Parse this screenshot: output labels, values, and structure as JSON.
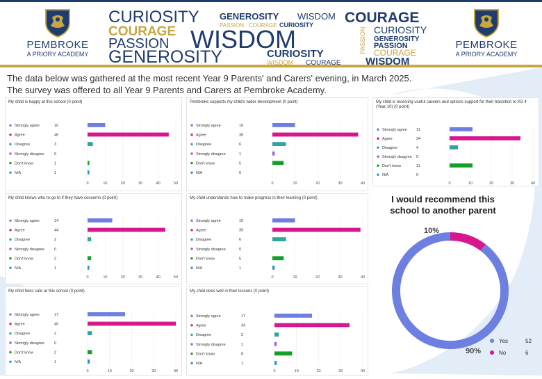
{
  "header": {
    "school_name": "PEMBROKE",
    "school_subtitle": "A PRIORY ACADEMY",
    "words": [
      {
        "text": "CURIOSITY",
        "color": "#1f3c6e"
      },
      {
        "text": "GENEROSITY",
        "color": "#1f3c6e"
      },
      {
        "text": "WISDOM",
        "color": "#1f3c6e"
      },
      {
        "text": "COURAGE",
        "color": "#1f3c6e"
      },
      {
        "text": "COURAGE",
        "color": "#c9a640"
      },
      {
        "text": "PASSION",
        "color": "#c9a640"
      },
      {
        "text": "COURAGE",
        "color": "#c9a640"
      },
      {
        "text": "CURIOSITY",
        "color": "#1f3c6e"
      },
      {
        "text": "PASSION",
        "color": "#1f3c6e"
      },
      {
        "text": "WISDOM",
        "color": "#1f3c6e"
      },
      {
        "text": "CURIOSITY",
        "color": "#1f3c6e"
      },
      {
        "text": "GENEROSITY",
        "color": "#1f3c6e"
      },
      {
        "text": "PASSION",
        "color": "#1f3c6e"
      },
      {
        "text": "GENEROSITY",
        "color": "#1f3c6e"
      },
      {
        "text": "CURIOSITY",
        "color": "#1f3c6e"
      },
      {
        "text": "WISDOM",
        "color": "#c9a640"
      },
      {
        "text": "COURAGE",
        "color": "#1f3c6e"
      },
      {
        "text": "PASSION",
        "color": "#c9a640"
      },
      {
        "text": "COURAGE",
        "color": "#c9a640"
      },
      {
        "text": "WISDOM",
        "color": "#1f3c6e"
      }
    ]
  },
  "intro": {
    "line1": "The data below was gathered at the most recent Year 9 Parents' and Carers' evening, in March 2025.",
    "line2": "The survey was offered to all Year 9 Parents and Carers at Pembroke Academy."
  },
  "colors": {
    "categories": [
      "#6d7fe0",
      "#d6178d",
      "#2ea5a0",
      "#9b5fd6",
      "#14a028",
      "#2f8fdd"
    ]
  },
  "chart_data": [
    {
      "type": "bar",
      "orientation": "horizontal",
      "title": "My child is happy at this school (0 point)",
      "categories": [
        "Strongly agree",
        "Agree",
        "Disagree",
        "Strongly disagree",
        "Don't know",
        "N/A"
      ],
      "values": [
        10,
        46,
        3,
        0,
        1,
        1
      ],
      "xlim": [
        0,
        50
      ],
      "ticks": [
        0,
        10,
        20,
        30,
        40,
        50
      ]
    },
    {
      "type": "bar",
      "orientation": "horizontal",
      "title": "Pembroke supports my child's wider development (0 point)",
      "categories": [
        "Strongly agree",
        "Agree",
        "Disagree",
        "Strongly disagree",
        "Don't know",
        "N/A"
      ],
      "values": [
        10,
        38,
        6,
        1,
        5,
        0
      ],
      "xlim": [
        0,
        40
      ],
      "ticks": [
        0,
        10,
        20,
        30,
        40
      ]
    },
    {
      "type": "bar",
      "orientation": "horizontal",
      "title": "My child is receiving useful careers and options support for their transition to KS 4 (Year 10) (0 point)",
      "categories": [
        "Strongly agree",
        "Agree",
        "Disagree",
        "Strongly disagree",
        "Don't know",
        "N/A"
      ],
      "values": [
        11,
        34,
        4,
        0,
        11,
        0
      ],
      "xlim": [
        0,
        40
      ],
      "ticks": [
        0,
        10,
        20,
        30,
        40
      ]
    },
    {
      "type": "bar",
      "orientation": "horizontal",
      "title": "My child knows who to go to if they have concerns (0 point)",
      "categories": [
        "Strongly agree",
        "Agree",
        "Disagree",
        "Strongly disagree",
        "Don't know",
        "N/A"
      ],
      "values": [
        14,
        44,
        2,
        0,
        2,
        1
      ],
      "xlim": [
        0,
        50
      ],
      "ticks": [
        0,
        10,
        20,
        30,
        40,
        50
      ]
    },
    {
      "type": "bar",
      "orientation": "horizontal",
      "title": "My child understands how to make progress in their learning (0 point)",
      "categories": [
        "Strongly agree",
        "Agree",
        "Disagree",
        "Strongly disagree",
        "Don't know",
        "N/A"
      ],
      "values": [
        10,
        39,
        6,
        0,
        5,
        1
      ],
      "xlim": [
        0,
        40
      ],
      "ticks": [
        0,
        10,
        20,
        30,
        40
      ]
    },
    {
      "type": "bar",
      "orientation": "horizontal",
      "title": "My child feels safe at this school (0 point)",
      "categories": [
        "Strongly agree",
        "Agree",
        "Disagree",
        "Strongly disagree",
        "Don't know",
        "N/A"
      ],
      "values": [
        17,
        40,
        2,
        0,
        2,
        1
      ],
      "xlim": [
        0,
        40
      ],
      "ticks": [
        0,
        10,
        20,
        30,
        40
      ]
    },
    {
      "type": "bar",
      "orientation": "horizontal",
      "title": "My child does well in their lessons (0 point)",
      "categories": [
        "Strongly agree",
        "Agree",
        "Disagree",
        "Strongly disagree",
        "Don't know",
        "N/A"
      ],
      "values": [
        17,
        34,
        2,
        1,
        8,
        1
      ],
      "xlim": [
        0,
        40
      ],
      "ticks": [
        0,
        10,
        20,
        30,
        40
      ]
    },
    {
      "type": "pie",
      "donut": true,
      "title": "I would recommend this school to another parent",
      "categories": [
        "Yes",
        "No"
      ],
      "values": [
        52,
        6
      ],
      "percent_labels": [
        "90%",
        "10%"
      ],
      "colors": [
        "#6d7fe0",
        "#d6178d"
      ]
    }
  ]
}
